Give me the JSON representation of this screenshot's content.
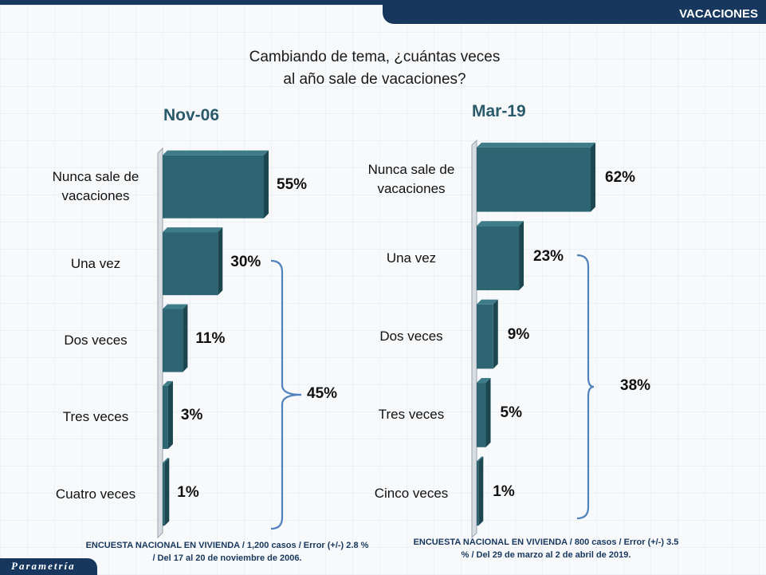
{
  "header": {
    "section_label": "VACACIONES"
  },
  "question": {
    "line1": "Cambiando de tema, ¿cuántas veces",
    "line2": "al año sale de vacaciones?"
  },
  "colors": {
    "bar": "#2d6573",
    "bar_side": "#1c4650",
    "bracket": "#4f81bd",
    "title": "#2a5a6a"
  },
  "chart_data": [
    {
      "type": "bar",
      "orientation": "horizontal",
      "title": "Nov-06",
      "categories": [
        "Nunca sale de vacaciones",
        "Una vez",
        "Dos veces",
        "Tres veces",
        "Cuatro veces"
      ],
      "category_lines": [
        [
          "Nunca sale de",
          "vacaciones"
        ],
        [
          "Una vez"
        ],
        [
          "Dos veces"
        ],
        [
          "Tres veces"
        ],
        [
          "Cuatro veces"
        ]
      ],
      "values": [
        55,
        30,
        11,
        3,
        1
      ],
      "value_labels": [
        "55%",
        "30%",
        "11%",
        "3%",
        "1%"
      ],
      "xlim": [
        0,
        55
      ],
      "group": {
        "label": "45%",
        "covers": [
          "Una vez",
          "Dos veces",
          "Tres veces",
          "Cuatro veces"
        ]
      }
    },
    {
      "type": "bar",
      "orientation": "horizontal",
      "title": "Mar-19",
      "categories": [
        "Nunca sale de vacaciones",
        "Una vez",
        "Dos veces",
        "Tres veces",
        "Cinco veces"
      ],
      "category_lines": [
        [
          "Nunca sale de",
          "vacaciones"
        ],
        [
          "Una vez"
        ],
        [
          "Dos veces"
        ],
        [
          "Tres veces"
        ],
        [
          "Cinco veces"
        ]
      ],
      "values": [
        62,
        23,
        9,
        5,
        1
      ],
      "value_labels": [
        "62%",
        "23%",
        "9%",
        "5%",
        "1%"
      ],
      "xlim": [
        0,
        62
      ],
      "group": {
        "label": "38%",
        "covers": [
          "Una vez",
          "Dos veces",
          "Tres veces",
          "Cinco veces"
        ]
      }
    }
  ],
  "footnotes": {
    "left": [
      "ENCUESTA NACIONAL EN VIVIENDA / 1,200 casos / Error (+/-) 2.8 %",
      "/ Del 17 al 20 de noviembre de 2006."
    ],
    "right": [
      "ENCUESTA NACIONAL EN VIVIENDA / 800 casos / Error (+/-) 3.5",
      "% / Del 29 de marzo al 2 de abril de 2019."
    ]
  },
  "logo": {
    "text": "Parametría"
  }
}
